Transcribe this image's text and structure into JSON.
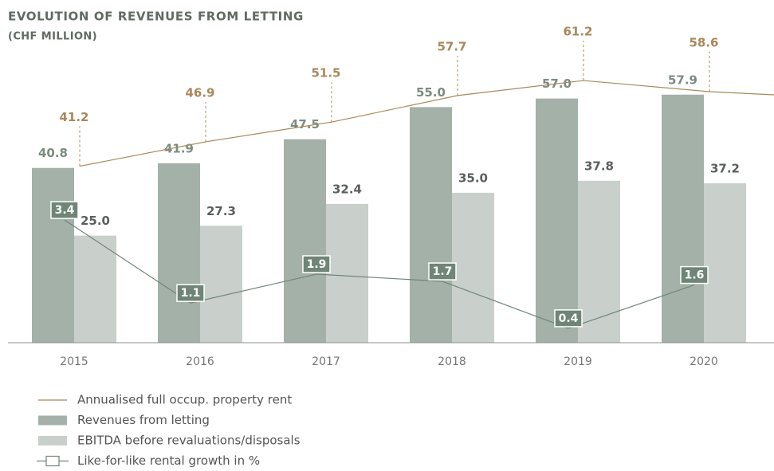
{
  "chart_data": {
    "type": "bar",
    "title": "EVOLUTION OF REVENUES FROM LETTING",
    "subtitle": "(CHF MILLION)",
    "categories": [
      "2015",
      "2016",
      "2017",
      "2018",
      "2019",
      "2020"
    ],
    "ylim": [
      0,
      80
    ],
    "y2lim": [
      0,
      9.5
    ],
    "series": [
      {
        "name": "Annualised full occup. property rent",
        "type": "line",
        "color": "#a8885c",
        "values": [
          41.2,
          46.9,
          51.5,
          57.7,
          61.2,
          58.6
        ],
        "value_labels": [
          "41.2",
          "46.9",
          "51.5",
          "57.7",
          "61.2",
          "58.6"
        ]
      },
      {
        "name": "Revenues from letting",
        "type": "bar",
        "color": "#a4b1a8",
        "values": [
          40.8,
          41.9,
          47.5,
          55.0,
          57.0,
          57.9
        ],
        "value_labels": [
          "40.8",
          "41.9",
          "47.5",
          "55.0",
          "57.0",
          "57.9"
        ]
      },
      {
        "name": "EBITDA before revaluations/disposals",
        "type": "bar",
        "color": "#c9cfca",
        "values": [
          25.0,
          27.3,
          32.4,
          35.0,
          37.8,
          37.2
        ],
        "value_labels": [
          "25.0",
          "27.3",
          "32.4",
          "35.0",
          "37.8",
          "37.2"
        ]
      },
      {
        "name": "Like-for-like rental growth in %",
        "type": "line",
        "axis": "y2",
        "color": "#6f8576",
        "values": [
          3.4,
          1.1,
          1.9,
          1.7,
          0.4,
          1.6
        ],
        "value_labels": [
          "3.4",
          "1.1",
          "1.9",
          "1.7",
          "0.4",
          "1.6"
        ]
      }
    ]
  }
}
